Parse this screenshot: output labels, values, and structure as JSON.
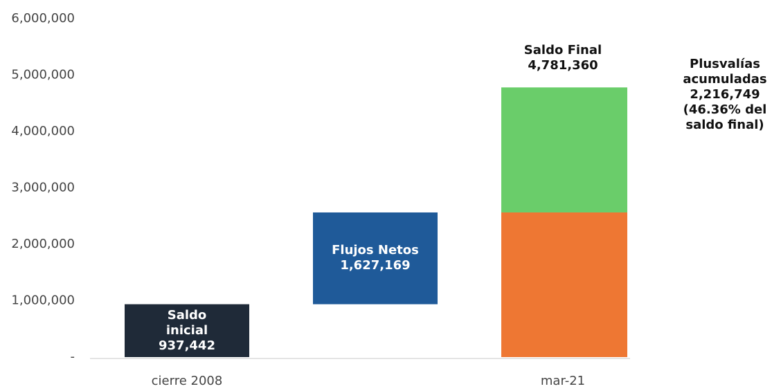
{
  "chart_data": {
    "type": "waterfall",
    "categories": [
      "cierre 2008",
      null,
      "mar-21"
    ],
    "steps": [
      {
        "name": "Saldo inicial",
        "value": 937442,
        "value_label": "937,442",
        "color": "#1f2a38"
      },
      {
        "name": "Flujos Netos",
        "value": 1627169,
        "value_label": "1,627,169",
        "color": "#1f5a99"
      }
    ],
    "final": {
      "name": "Saldo Final",
      "value": 4781360,
      "value_label": "4,781,360",
      "segments": [
        {
          "value": 2564611,
          "color": "#ee7733"
        },
        {
          "name": "Plusvalías acumuladas",
          "value": 2216749,
          "value_label": "2,216,749",
          "note": "(46.36% del saldo final)",
          "color": "#6acd6a"
        }
      ]
    },
    "ylim": [
      0,
      6000000
    ],
    "yticks": [
      {
        "value": 0,
        "label": "-"
      },
      {
        "value": 1000000,
        "label": "1,000,000"
      },
      {
        "value": 2000000,
        "label": "2,000,000"
      },
      {
        "value": 3000000,
        "label": "3,000,000"
      },
      {
        "value": 4000000,
        "label": "4,000,000"
      },
      {
        "value": 5000000,
        "label": "5,000,000"
      },
      {
        "value": 6000000,
        "label": "6,000,000"
      }
    ]
  }
}
